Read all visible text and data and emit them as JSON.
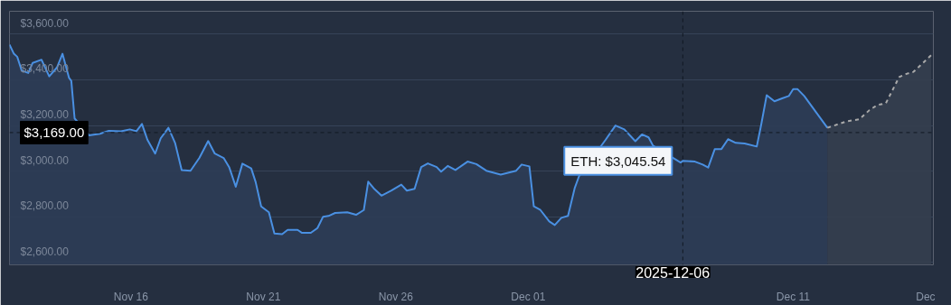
{
  "chart_data": {
    "type": "area",
    "grid": "y",
    "marker": "none",
    "xlim": [
      "2025-11-11T10:00",
      "2025-12-16T07:00"
    ],
    "ylim": [
      2590,
      3700
    ],
    "xticks": [
      {
        "value": "2025-11-16",
        "label": "Nov 16"
      },
      {
        "value": "2025-11-21",
        "label": "Nov 21"
      },
      {
        "value": "2025-11-26",
        "label": "Nov 26"
      },
      {
        "value": "2025-12-01",
        "label": "Dec 01"
      },
      {
        "value": "2025-12-11",
        "label": "Dec 11"
      },
      {
        "value": "2025-12-16",
        "label": "Dec"
      }
    ],
    "yticks": [
      {
        "value": 2600,
        "label": "$2,600.00"
      },
      {
        "value": 2800,
        "label": "$2,800.00"
      },
      {
        "value": 3000,
        "label": "$3,000.00"
      },
      {
        "value": 3200,
        "label": "$3,200.00"
      },
      {
        "value": 3400,
        "label": "$3,400.00"
      },
      {
        "value": 3600,
        "label": "$3,600.00"
      }
    ],
    "series": [
      {
        "color": "#4a90e2",
        "line_style": "solid",
        "x": [
          "2025-11-11T10:00",
          "2025-11-11T14:00",
          "2025-11-11T17:00",
          "2025-11-11T21:00",
          "2025-11-12T03:00",
          "2025-11-12T07:00",
          "2025-11-12T15:00",
          "2025-11-12T22:00",
          "2025-11-13T05:00",
          "2025-11-13T10:00",
          "2025-11-13T16:00",
          "2025-11-13T18:00",
          "2025-11-13T21:00",
          "2025-11-14T10:00",
          "2025-11-14T20:00",
          "2025-11-15T04:00",
          "2025-11-15T15:00",
          "2025-11-15T23:00",
          "2025-11-16T05:00",
          "2025-11-16T10:00",
          "2025-11-16T15:00",
          "2025-11-16T22:00",
          "2025-11-17T03:00",
          "2025-11-17T10:00",
          "2025-11-17T16:00",
          "2025-11-17T22:00",
          "2025-11-18T06:00",
          "2025-11-18T14:00",
          "2025-11-18T22:00",
          "2025-11-19T04:00",
          "2025-11-19T12:00",
          "2025-11-19T17:00",
          "2025-11-19T23:00",
          "2025-11-20T05:00",
          "2025-11-20T13:00",
          "2025-11-20T17:00",
          "2025-11-20T22:00",
          "2025-11-21T05:00",
          "2025-11-21T10:00",
          "2025-11-21T17:00",
          "2025-11-21T22:00",
          "2025-11-22T07:00",
          "2025-11-22T11:00",
          "2025-11-22T19:00",
          "2025-11-23T01:00",
          "2025-11-23T06:00",
          "2025-11-23T11:00",
          "2025-11-23T17:00",
          "2025-11-24T04:00",
          "2025-11-24T12:00",
          "2025-11-24T19:00",
          "2025-11-24T23:00",
          "2025-11-25T04:00",
          "2025-11-25T11:00",
          "2025-11-25T20:00",
          "2025-11-26T05:00",
          "2025-11-26T10:00",
          "2025-11-26T17:00",
          "2025-11-26T23:00",
          "2025-11-27T05:00",
          "2025-11-27T13:00",
          "2025-11-27T17:00",
          "2025-11-27T23:00",
          "2025-11-28T06:00",
          "2025-11-28T17:00",
          "2025-11-29T01:00",
          "2025-11-29T10:00",
          "2025-11-29T23:00",
          "2025-11-30T13:00",
          "2025-11-30T18:00",
          "2025-12-01T01:00",
          "2025-12-01T05:00",
          "2025-12-01T11:00",
          "2025-12-01T19:00",
          "2025-12-02T00:00",
          "2025-12-02T06:00",
          "2025-12-02T12:00",
          "2025-12-02T18:00",
          "2025-12-02T22:00",
          "2025-12-03T22:00",
          "2025-12-04T07:00",
          "2025-12-04T15:00",
          "2025-12-05T01:00",
          "2025-12-05T07:00",
          "2025-12-05T13:00",
          "2025-12-05T17:00",
          "2025-12-06T18:00",
          "2025-12-06T20:00",
          "2025-12-07T07:00",
          "2025-12-07T14:00",
          "2025-12-07T19:00",
          "2025-12-08T01:00",
          "2025-12-08T07:00",
          "2025-12-08T13:00",
          "2025-12-08T20:00",
          "2025-12-09T04:00",
          "2025-12-09T15:00",
          "2025-12-09T19:00",
          "2025-12-10T00:00",
          "2025-12-10T07:00",
          "2025-12-10T14:00",
          "2025-12-10T20:00",
          "2025-12-11T00:00",
          "2025-12-11T04:00",
          "2025-12-11T10:00",
          "2025-12-12T07:00"
        ],
        "values": [
          3554,
          3514,
          3501,
          3441,
          3430,
          3474,
          3488,
          3415,
          3454,
          3514,
          3408,
          3395,
          3231,
          3157,
          3164,
          3177,
          3175,
          3183,
          3175,
          3207,
          3137,
          3077,
          3144,
          3190,
          3124,
          3005,
          3002,
          3058,
          3132,
          3077,
          3058,
          3018,
          2932,
          3033,
          3012,
          2953,
          2846,
          2820,
          2727,
          2724,
          2743,
          2743,
          2730,
          2730,
          2751,
          2800,
          2804,
          2817,
          2820,
          2809,
          2830,
          2954,
          2925,
          2893,
          2915,
          2941,
          2915,
          2923,
          3018,
          3034,
          3018,
          2998,
          3023,
          3005,
          3042,
          3031,
          3002,
          2985,
          3002,
          3029,
          3021,
          2846,
          2830,
          2780,
          2764,
          2796,
          2804,
          2925,
          2978,
          3137,
          3200,
          3183,
          3131,
          3161,
          3148,
          3112,
          3038,
          3045.54,
          3042,
          3029,
          3016,
          3097,
          3097,
          3140,
          3124,
          3121,
          3108,
          3203,
          3333,
          3306,
          3319,
          3329,
          3359,
          3359,
          3329,
          3190
        ]
      },
      {
        "color": "#a9a9a9",
        "line_style": "dashed",
        "x": [
          "2025-12-12T07:00",
          "2025-12-13T01:00",
          "2025-12-13T12:00",
          "2025-12-13T21:00",
          "2025-12-14T04:00",
          "2025-12-14T12:00",
          "2025-12-15T00:00",
          "2025-12-15T06:00",
          "2025-12-15T13:00",
          "2025-12-16T05:00"
        ],
        "values": [
          3190,
          3219,
          3227,
          3267,
          3289,
          3298,
          3412,
          3425,
          3435,
          3508
        ]
      }
    ],
    "ref_lines": [
      {
        "axis": "y",
        "value": 3169,
        "label": "$3,169.00",
        "color": "#111822",
        "line_style": "dashed"
      },
      {
        "axis": "x",
        "value": "2025-12-06T20:00",
        "label": "2025-12-06",
        "color": "#111822",
        "line_style": "dashed"
      }
    ],
    "annotations": [
      {
        "text": "ETH: $3,045.54",
        "x": "2025-12-06T20:00",
        "y": 3045.54
      }
    ]
  }
}
